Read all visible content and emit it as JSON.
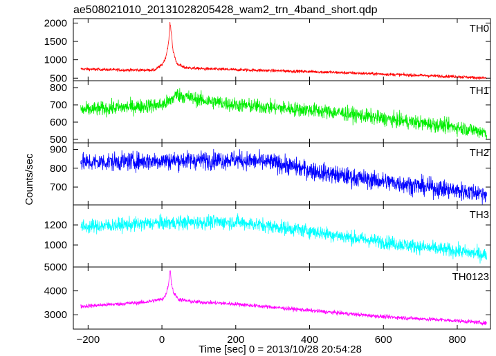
{
  "chart_data": {
    "type": "line",
    "title": "ae508021010_20131028205428_wam2_trn_4band_short.qdp",
    "xlabel": "Time [sec] 0 = 2013/10/28 20:54:28",
    "ylabel": "Counts/sec",
    "xlim": [
      -240,
      890
    ],
    "x_ticks": [
      -200,
      0,
      200,
      400,
      600,
      800
    ],
    "x_tick_labels": [
      "−200",
      "0",
      "200",
      "400",
      "600",
      "800"
    ],
    "grid": false,
    "series": [
      {
        "name": "TH0",
        "color": "#ff0000",
        "ylim": [
          430,
          2120
        ],
        "y_ticks": [
          500,
          1000,
          1500,
          2000
        ],
        "y_tick_labels": [
          "500",
          "1000",
          "1500",
          "2000"
        ],
        "x": [
          -220,
          -100,
          -20,
          0,
          10,
          18,
          22,
          26,
          30,
          40,
          60,
          100,
          200,
          400,
          600,
          800,
          880
        ],
        "values": [
          750,
          720,
          720,
          860,
          1050,
          1450,
          2000,
          1700,
          1250,
          900,
          790,
          760,
          730,
          680,
          610,
          540,
          500
        ],
        "noise": 30
      },
      {
        "name": "TH1",
        "color": "#00ee00",
        "ylim": [
          480,
          840
        ],
        "y_ticks": [
          500,
          600,
          700,
          800
        ],
        "y_tick_labels": [
          "500",
          "600",
          "700",
          "800"
        ],
        "x": [
          -220,
          0,
          20,
          40,
          100,
          200,
          400,
          500,
          600,
          800,
          880
        ],
        "values": [
          670,
          700,
          720,
          760,
          730,
          700,
          670,
          650,
          620,
          570,
          540
        ],
        "noise": 30
      },
      {
        "name": "TH2",
        "color": "#0000ff",
        "ylim": [
          605,
          935
        ],
        "y_ticks": [
          700,
          800,
          900
        ],
        "y_tick_labels": [
          "700",
          "800",
          "900"
        ],
        "x": [
          -220,
          0,
          200,
          300,
          400,
          500,
          600,
          700,
          800,
          880
        ],
        "values": [
          830,
          840,
          845,
          830,
          790,
          755,
          730,
          705,
          680,
          665
        ],
        "noise": 35
      },
      {
        "name": "TH3",
        "color": "#00ffff",
        "ylim": [
          780,
          1400
        ],
        "y_ticks": [
          1000,
          1200
        ],
        "y_tick_labels": [
          "1000",
          "1200"
        ],
        "x": [
          -220,
          0,
          200,
          400,
          500,
          600,
          700,
          800,
          880
        ],
        "values": [
          1180,
          1220,
          1230,
          1140,
          1080,
          1030,
          980,
          940,
          900
        ],
        "noise": 50
      },
      {
        "name": "TH0123",
        "color": "#ff00ff",
        "ylim": [
          2400,
          5000
        ],
        "y_ticks": [
          3000,
          4000,
          5000
        ],
        "y_tick_labels": [
          "3000",
          "4000",
          "5000"
        ],
        "x": [
          -220,
          -50,
          0,
          10,
          18,
          22,
          26,
          32,
          45,
          80,
          200,
          400,
          600,
          800,
          880
        ],
        "values": [
          3350,
          3520,
          3650,
          3800,
          4300,
          4950,
          4300,
          3900,
          3650,
          3550,
          3450,
          3180,
          2920,
          2750,
          2650
        ],
        "noise": 60
      }
    ]
  }
}
